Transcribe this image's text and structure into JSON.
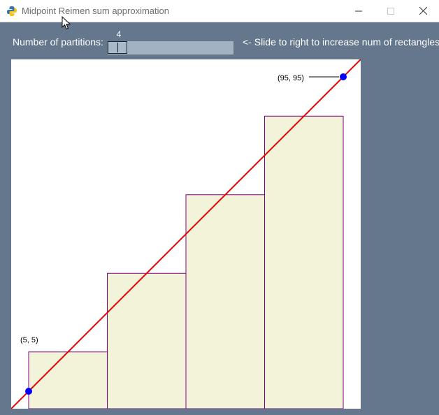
{
  "window": {
    "title": "Midpoint Reimen sum approximation",
    "icon": "python-icon",
    "controls": [
      "minimize-icon",
      "maximize-icon",
      "close-icon"
    ]
  },
  "controls": {
    "partitions_label": "Number of partitions:",
    "slider_value": "4",
    "slider_min": 1,
    "slider_max": 20,
    "hint": "<- Slide to right to increase num of rectangles"
  },
  "graph": {
    "function": "y = x",
    "domain": [
      0,
      100
    ],
    "range": [
      0,
      100
    ],
    "point_start_label": "(5, 5)",
    "point_end_label": "(95, 95)",
    "line_color": "#e60000",
    "point_color": "#0000ff",
    "rect_fill": "#f3f3da",
    "rect_stroke": "#800080",
    "rectangles": [
      {
        "x0": 5,
        "x1": 27.5,
        "height": 16.25
      },
      {
        "x0": 27.5,
        "x1": 50,
        "height": 38.75
      },
      {
        "x0": 50,
        "x1": 72.5,
        "height": 61.25
      },
      {
        "x0": 72.5,
        "x1": 95,
        "height": 83.75
      }
    ]
  }
}
